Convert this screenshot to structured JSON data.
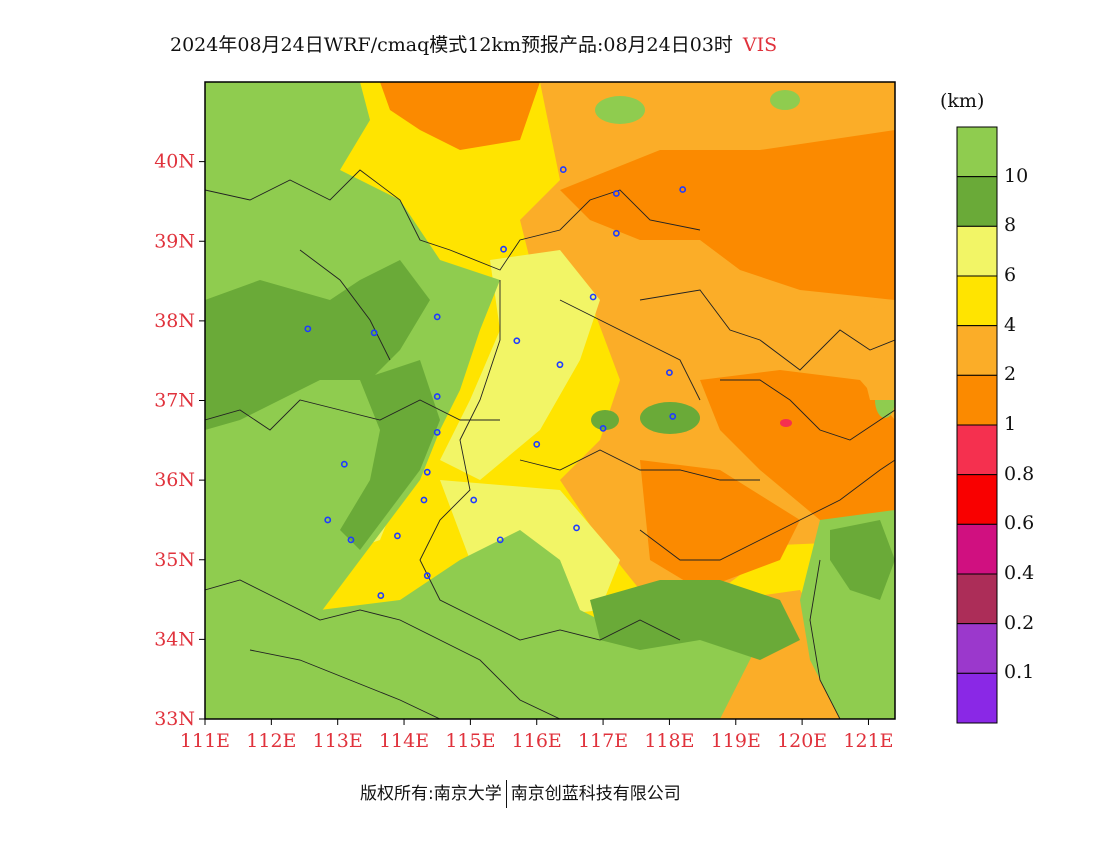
{
  "title": {
    "text": "2024年08月24日WRF/cmaq模式12km预报产品:08月24日03时",
    "variable": "VIS"
  },
  "map": {
    "lat_ticks": [
      {
        "label": "40N",
        "value": 40
      },
      {
        "label": "39N",
        "value": 39
      },
      {
        "label": "38N",
        "value": 38
      },
      {
        "label": "37N",
        "value": 37
      },
      {
        "label": "36N",
        "value": 36
      },
      {
        "label": "35N",
        "value": 35
      },
      {
        "label": "34N",
        "value": 34
      },
      {
        "label": "33N",
        "value": 33
      }
    ],
    "lon_ticks": [
      {
        "label": "111E",
        "value": 111
      },
      {
        "label": "112E",
        "value": 112
      },
      {
        "label": "113E",
        "value": 113
      },
      {
        "label": "114E",
        "value": 114
      },
      {
        "label": "115E",
        "value": 115
      },
      {
        "label": "116E",
        "value": 116
      },
      {
        "label": "117E",
        "value": 117
      },
      {
        "label": "118E",
        "value": 118
      },
      {
        "label": "119E",
        "value": 119
      },
      {
        "label": "120E",
        "value": 120
      },
      {
        "label": "121E",
        "value": 121
      }
    ],
    "lon_range": [
      111,
      121.4
    ],
    "lat_range": [
      33,
      41
    ],
    "cities": [
      {
        "lon": 116.4,
        "lat": 39.9
      },
      {
        "lon": 117.2,
        "lat": 39.1
      },
      {
        "lon": 115.5,
        "lat": 38.9
      },
      {
        "lon": 114.5,
        "lat": 38.05
      },
      {
        "lon": 112.55,
        "lat": 37.9
      },
      {
        "lon": 113.55,
        "lat": 37.85
      },
      {
        "lon": 115.7,
        "lat": 37.75
      },
      {
        "lon": 116.35,
        "lat": 37.45
      },
      {
        "lon": 116.85,
        "lat": 38.3
      },
      {
        "lon": 114.5,
        "lat": 37.05
      },
      {
        "lon": 114.5,
        "lat": 36.6
      },
      {
        "lon": 113.1,
        "lat": 36.2
      },
      {
        "lon": 114.35,
        "lat": 36.1
      },
      {
        "lon": 114.3,
        "lat": 35.75
      },
      {
        "lon": 115.05,
        "lat": 35.75
      },
      {
        "lon": 116.0,
        "lat": 36.45
      },
      {
        "lon": 117.0,
        "lat": 36.65
      },
      {
        "lon": 118.05,
        "lat": 36.8
      },
      {
        "lon": 118.0,
        "lat": 37.35
      },
      {
        "lon": 112.85,
        "lat": 35.5
      },
      {
        "lon": 113.2,
        "lat": 35.25
      },
      {
        "lon": 113.9,
        "lat": 35.3
      },
      {
        "lon": 115.45,
        "lat": 35.25
      },
      {
        "lon": 116.6,
        "lat": 35.4
      },
      {
        "lon": 114.35,
        "lat": 34.8
      },
      {
        "lon": 113.65,
        "lat": 34.55
      },
      {
        "lon": 117.2,
        "lat": 39.6
      },
      {
        "lon": 118.2,
        "lat": 39.65
      }
    ]
  },
  "colorbar": {
    "unit": "(km)",
    "bins": [
      {
        "label": "10",
        "color": "#8fcc4f"
      },
      {
        "label": "8",
        "color": "#6aaa38"
      },
      {
        "label": "6",
        "color": "#f2f566"
      },
      {
        "label": "4",
        "color": "#ffe400"
      },
      {
        "label": "2",
        "color": "#fbad28"
      },
      {
        "label": "1",
        "color": "#fb8a00"
      },
      {
        "label": "0.8",
        "color": "#f5304f"
      },
      {
        "label": "0.6",
        "color": "#f90000"
      },
      {
        "label": "0.4",
        "color": "#d01080"
      },
      {
        "label": "0.2",
        "color": "#ac2d58"
      },
      {
        "label": "0.1",
        "color": "#9b38cc"
      },
      {
        "label": "",
        "color": "#8a28e6"
      }
    ]
  },
  "footer": {
    "left": "版权所有:南京大学",
    "right": "南京创蓝科技有限公司"
  }
}
